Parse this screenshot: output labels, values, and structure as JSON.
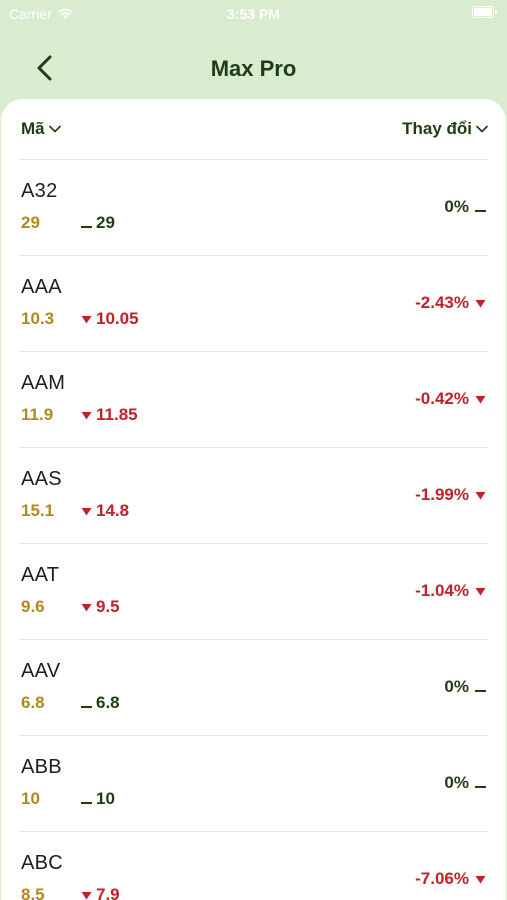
{
  "status": {
    "carrier": "Carrier",
    "time": "3:53 PM"
  },
  "nav": {
    "title": "Max Pro"
  },
  "columns": {
    "left": "Mã",
    "right": "Thay đổi"
  },
  "colors": {
    "up": "#1f3d12",
    "down": "#c0212a",
    "ref": "#b08a1e",
    "header_bg": "#d9ecd0"
  },
  "rows": [
    {
      "symbol": "A32",
      "ref": "29",
      "price": "29",
      "change": "0%",
      "dir": "flat"
    },
    {
      "symbol": "AAA",
      "ref": "10.3",
      "price": "10.05",
      "change": "-2.43%",
      "dir": "down"
    },
    {
      "symbol": "AAM",
      "ref": "11.9",
      "price": "11.85",
      "change": "-0.42%",
      "dir": "down"
    },
    {
      "symbol": "AAS",
      "ref": "15.1",
      "price": "14.8",
      "change": "-1.99%",
      "dir": "down"
    },
    {
      "symbol": "AAT",
      "ref": "9.6",
      "price": "9.5",
      "change": "-1.04%",
      "dir": "down"
    },
    {
      "symbol": "AAV",
      "ref": "6.8",
      "price": "6.8",
      "change": "0%",
      "dir": "flat"
    },
    {
      "symbol": "ABB",
      "ref": "10",
      "price": "10",
      "change": "0%",
      "dir": "flat"
    },
    {
      "symbol": "ABC",
      "ref": "8.5",
      "price": "7.9",
      "change": "-7.06%",
      "dir": "down"
    }
  ]
}
